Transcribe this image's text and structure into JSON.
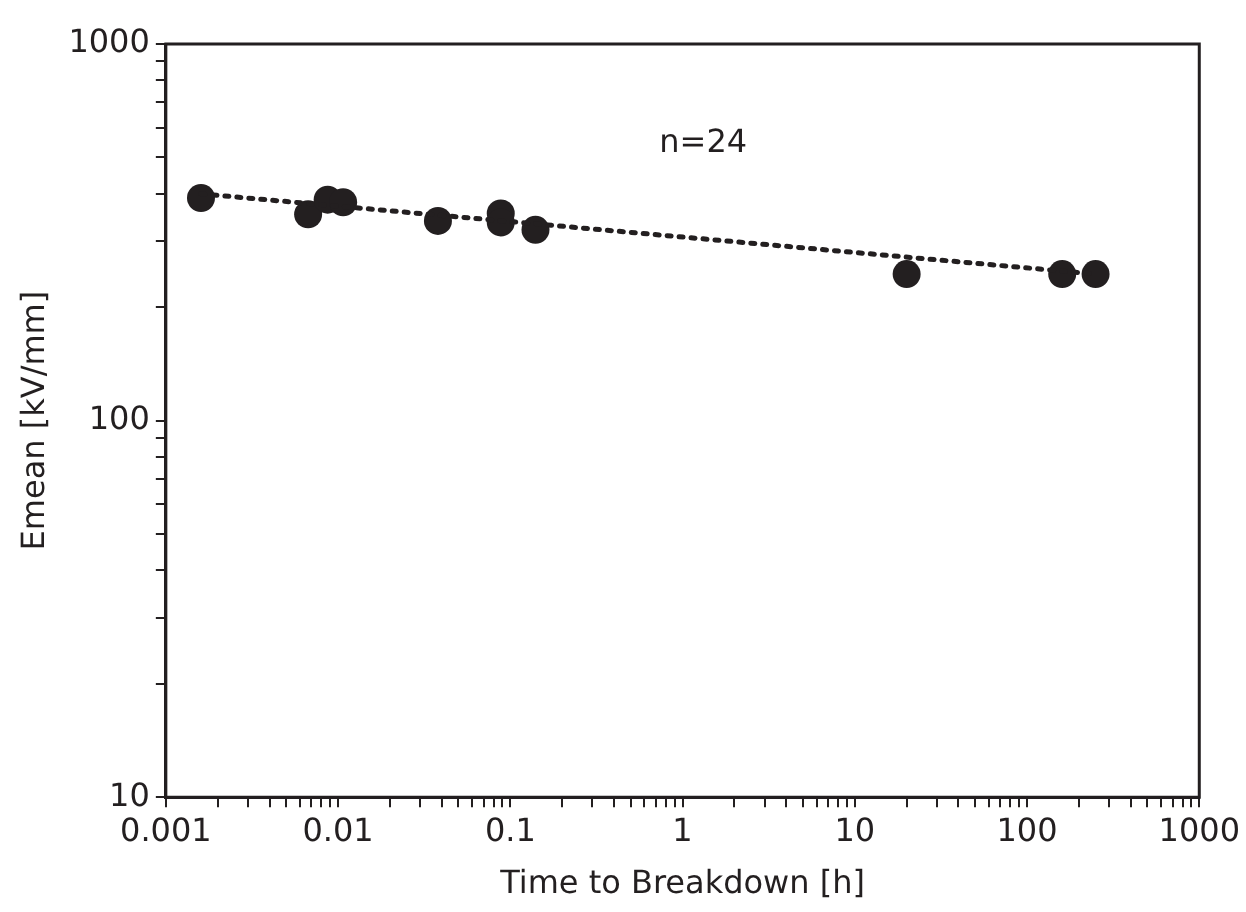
{
  "chart_data": {
    "type": "scatter",
    "xlabel": "Time to Breakdown [h]",
    "ylabel": "Emean [kV/mm]",
    "log": "xy",
    "grid": false,
    "legend": false,
    "marker": "circle",
    "xlim": [
      0.001,
      1000
    ],
    "ylim": [
      10,
      1000
    ],
    "xticks": [
      0.001,
      {
        "value": 0.002,
        "label": null
      },
      {
        "value": 0.003,
        "label": null
      },
      {
        "value": 0.004,
        "label": null
      },
      {
        "value": 0.005,
        "label": null
      },
      {
        "value": 0.006,
        "label": null
      },
      {
        "value": 0.007,
        "label": null
      },
      {
        "value": 0.008,
        "label": null
      },
      {
        "value": 0.009,
        "label": null
      },
      0.01,
      {
        "value": 0.02,
        "label": null
      },
      {
        "value": 0.03,
        "label": null
      },
      {
        "value": 0.04,
        "label": null
      },
      {
        "value": 0.05,
        "label": null
      },
      {
        "value": 0.06,
        "label": null
      },
      {
        "value": 0.07,
        "label": null
      },
      {
        "value": 0.08,
        "label": null
      },
      {
        "value": 0.09,
        "label": null
      },
      0.1,
      {
        "value": 0.2,
        "label": null
      },
      {
        "value": 0.3,
        "label": null
      },
      {
        "value": 0.4,
        "label": null
      },
      {
        "value": 0.5,
        "label": null
      },
      {
        "value": 0.6,
        "label": null
      },
      {
        "value": 0.7,
        "label": null
      },
      {
        "value": 0.8,
        "label": null
      },
      {
        "value": 0.9,
        "label": null
      },
      1,
      {
        "value": 2,
        "label": null
      },
      {
        "value": 3,
        "label": null
      },
      {
        "value": 4,
        "label": null
      },
      {
        "value": 5,
        "label": null
      },
      {
        "value": 6,
        "label": null
      },
      {
        "value": 7,
        "label": null
      },
      {
        "value": 8,
        "label": null
      },
      {
        "value": 9,
        "label": null
      },
      10,
      {
        "value": 20,
        "label": null
      },
      {
        "value": 30,
        "label": null
      },
      {
        "value": 40,
        "label": null
      },
      {
        "value": 50,
        "label": null
      },
      {
        "value": 60,
        "label": null
      },
      {
        "value": 70,
        "label": null
      },
      {
        "value": 80,
        "label": null
      },
      {
        "value": 90,
        "label": null
      },
      100,
      {
        "value": 200,
        "label": null
      },
      {
        "value": 300,
        "label": null
      },
      {
        "value": 400,
        "label": null
      },
      {
        "value": 500,
        "label": null
      },
      {
        "value": 600,
        "label": null
      },
      {
        "value": 700,
        "label": null
      },
      {
        "value": 800,
        "label": null
      },
      {
        "value": 900,
        "label": null
      },
      1000
    ],
    "yticks": [
      10,
      {
        "value": 20,
        "label": null
      },
      {
        "value": 30,
        "label": null
      },
      {
        "value": 40,
        "label": null
      },
      {
        "value": 50,
        "label": null
      },
      {
        "value": 60,
        "label": null
      },
      {
        "value": 70,
        "label": null
      },
      {
        "value": 80,
        "label": null
      },
      {
        "value": 90,
        "label": null
      },
      100,
      {
        "value": 200,
        "label": null
      },
      {
        "value": 300,
        "label": null
      },
      {
        "value": 400,
        "label": null
      },
      {
        "value": 500,
        "label": null
      },
      {
        "value": 600,
        "label": null
      },
      {
        "value": 700,
        "label": null
      },
      {
        "value": 800,
        "label": null
      },
      {
        "value": 900,
        "label": null
      },
      1000
    ],
    "annotations": [
      "n=24"
    ],
    "series": [
      {
        "color": "#231f20",
        "x": [
          0.0016,
          0.0067,
          0.0087,
          0.0107,
          0.038,
          0.088,
          0.088,
          0.14,
          20,
          160,
          250
        ],
        "values": [
          390,
          353,
          386,
          380,
          339,
          355,
          336,
          321,
          245,
          245,
          245
        ]
      },
      {
        "type": "line",
        "color": "#231f20",
        "line_style": "dotted",
        "marker": "none",
        "x": [
          0.0016,
          250
        ],
        "values": [
          400,
          245
        ]
      }
    ]
  }
}
